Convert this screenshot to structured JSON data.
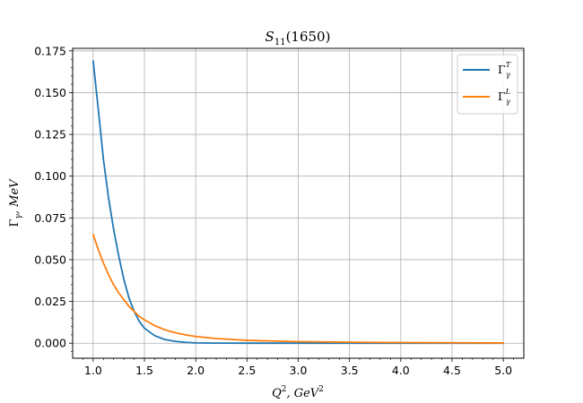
{
  "chart_data": {
    "type": "line",
    "title": {
      "main": "S",
      "sub": "11",
      "tail": "(1650)"
    },
    "xlabel": {
      "base": "Q",
      "sup": "2",
      "mid": ", GeV",
      "sup2": "2"
    },
    "ylabel": {
      "pre": "Γ",
      "sub": "γ",
      "tail": ", MeV"
    },
    "xlim": [
      0.8,
      5.2
    ],
    "ylim": [
      -0.009,
      0.1765
    ],
    "x_ticks": [
      1.0,
      1.5,
      2.0,
      2.5,
      3.0,
      3.5,
      4.0,
      4.5,
      5.0
    ],
    "x_tick_labels": [
      "1.0",
      "1.5",
      "2.0",
      "2.5",
      "3.0",
      "3.5",
      "4.0",
      "4.5",
      "5.0"
    ],
    "y_ticks": [
      0.0,
      0.025,
      0.05,
      0.075,
      0.1,
      0.125,
      0.15,
      0.175
    ],
    "y_tick_labels": [
      "0.000",
      "0.025",
      "0.050",
      "0.075",
      "0.100",
      "0.125",
      "0.150",
      "0.175"
    ],
    "grid": true,
    "legend_position": "top-right",
    "series": [
      {
        "name": {
          "base": "Γ",
          "sub": "γ",
          "sup": "T"
        },
        "color": "#1f77b4",
        "x": [
          1.0,
          1.05,
          1.1,
          1.15,
          1.2,
          1.25,
          1.3,
          1.35,
          1.4,
          1.45,
          1.5,
          1.6,
          1.7,
          1.8,
          1.9,
          2.0,
          2.2,
          2.5,
          3.0,
          3.5,
          4.0,
          4.5,
          5.0
        ],
        "y": [
          0.169,
          0.14,
          0.11,
          0.087,
          0.068,
          0.052,
          0.038,
          0.027,
          0.019,
          0.013,
          0.009,
          0.0045,
          0.0022,
          0.0011,
          0.0005,
          0.0002,
          5e-05,
          0.0,
          0.0,
          0.0,
          0.0,
          0.0,
          0.0
        ]
      },
      {
        "name": {
          "base": "Γ",
          "sub": "γ",
          "sup": "L"
        },
        "color": "#ff7f0e",
        "x": [
          1.0,
          1.05,
          1.1,
          1.15,
          1.2,
          1.25,
          1.3,
          1.35,
          1.4,
          1.45,
          1.5,
          1.6,
          1.7,
          1.8,
          1.9,
          2.0,
          2.2,
          2.5,
          3.0,
          3.5,
          4.0,
          4.5,
          5.0
        ],
        "y": [
          0.065,
          0.056,
          0.048,
          0.041,
          0.035,
          0.03,
          0.026,
          0.022,
          0.019,
          0.016,
          0.014,
          0.0105,
          0.008,
          0.0063,
          0.005,
          0.004,
          0.0028,
          0.0017,
          0.0009,
          0.0006,
          0.0004,
          0.00025,
          0.00015
        ]
      }
    ]
  }
}
